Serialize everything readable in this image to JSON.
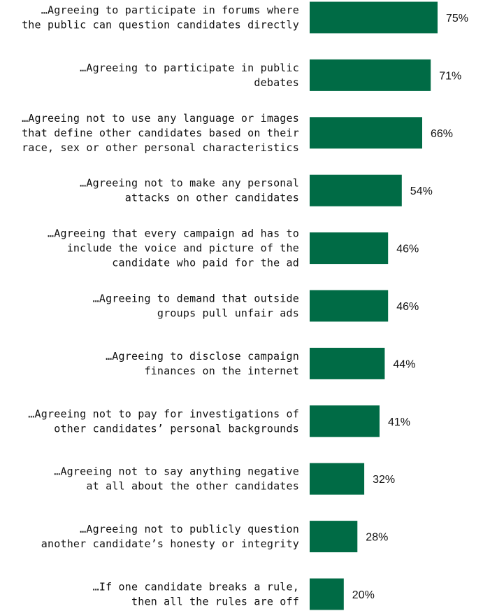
{
  "chart_data": {
    "type": "bar",
    "orientation": "horizontal",
    "title": "",
    "xlabel": "",
    "ylabel": "",
    "xlim": [
      0,
      75
    ],
    "grid": false,
    "legend": "none",
    "bar_color": "#006b45",
    "value_suffix": "%",
    "categories": [
      [
        "…Agreeing to participate in forums where",
        "the public can question candidates directly"
      ],
      [
        "…Agreeing to participate in public",
        "debates"
      ],
      [
        "…Agreeing not to use any language or images",
        "that define other candidates based on their",
        "race, sex or other personal characteristics"
      ],
      [
        "…Agreeing not to make any personal",
        "attacks on other candidates"
      ],
      [
        "…Agreeing that every campaign ad has to",
        "include the voice and picture of the",
        "candidate who paid for the ad"
      ],
      [
        "…Agreeing to demand that outside",
        "groups pull unfair ads"
      ],
      [
        "…Agreeing to disclose campaign",
        "finances on the internet"
      ],
      [
        "…Agreeing not to pay for investigations of",
        "other candidates’ personal backgrounds"
      ],
      [
        "…Agreeing not to say anything negative",
        "at all about the other candidates"
      ],
      [
        "…Agreeing not to publicly question",
        "another candidate’s honesty or integrity"
      ],
      [
        "…If one candidate breaks a rule,",
        "then all the rules are off"
      ]
    ],
    "values": [
      75,
      71,
      66,
      54,
      46,
      46,
      44,
      41,
      32,
      28,
      20
    ]
  }
}
